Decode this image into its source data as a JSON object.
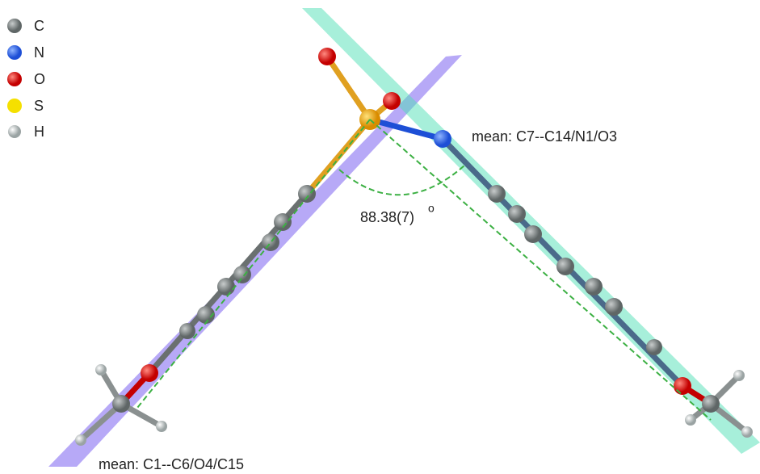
{
  "legend": [
    {
      "label": "C"
    },
    {
      "label": "N"
    },
    {
      "label": "O"
    },
    {
      "label": "S"
    },
    {
      "label": "H"
    }
  ],
  "annotations": {
    "angle": "88.38(7)",
    "angle_unit": "o",
    "plane_right": "mean: C7--C14/N1/O3",
    "plane_left": "mean: C1--C6/O4/C15"
  }
}
